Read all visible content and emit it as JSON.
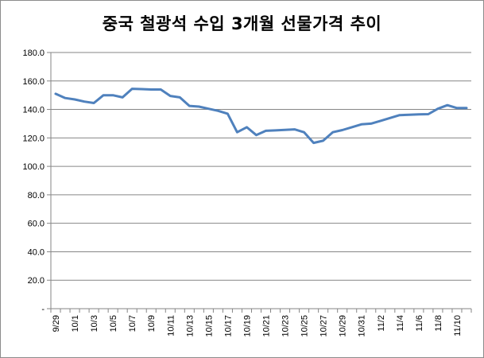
{
  "chart_data": {
    "type": "line",
    "title": "중국 철광석 수입 3개월 선물가격 추이",
    "xlabel": "",
    "ylabel": "",
    "ylim": [
      0,
      180
    ],
    "yticks": [
      {
        "value": 0,
        "label": "-"
      },
      {
        "value": 20,
        "label": "20.0"
      },
      {
        "value": 40,
        "label": "40.0"
      },
      {
        "value": 60,
        "label": "60.0"
      },
      {
        "value": 80,
        "label": "80.0"
      },
      {
        "value": 100,
        "label": "100.0"
      },
      {
        "value": 120,
        "label": "120.0"
      },
      {
        "value": 140,
        "label": "140.0"
      },
      {
        "value": 160,
        "label": "160.0"
      },
      {
        "value": 180,
        "label": "180.0"
      }
    ],
    "xticklabels": [
      "9/29",
      "10/1",
      "10/3",
      "10/5",
      "10/7",
      "10/9",
      "10/11",
      "10/13",
      "10/15",
      "10/17",
      "10/19",
      "10/21",
      "10/23",
      "10/25",
      "10/27",
      "10/29",
      "10/31",
      "11/2",
      "11/4",
      "11/6",
      "11/8",
      "11/10"
    ],
    "grid": {
      "y": true,
      "x": false
    },
    "legend": "none",
    "line_color": "#4f81bd",
    "x": [
      "9/29",
      "9/30",
      "10/1",
      "10/2",
      "10/3",
      "10/4",
      "10/5",
      "10/6",
      "10/7",
      "10/8",
      "10/9",
      "10/10",
      "10/11",
      "10/12",
      "10/13",
      "10/14",
      "10/15",
      "10/16",
      "10/17",
      "10/18",
      "10/19",
      "10/20",
      "10/21",
      "10/22",
      "10/23",
      "10/24",
      "10/25",
      "10/26",
      "10/27",
      "10/28",
      "10/29",
      "10/30",
      "10/31",
      "11/1",
      "11/2",
      "11/3",
      "11/4",
      "11/5",
      "11/6",
      "11/7",
      "11/8",
      "11/9",
      "11/10",
      "11/11"
    ],
    "values": [
      151.0,
      148.0,
      147.0,
      145.5,
      144.5,
      150.0,
      150.0,
      148.5,
      154.5,
      154.3,
      154.0,
      154.0,
      149.5,
      148.5,
      142.5,
      142.0,
      140.5,
      139.0,
      137.0,
      124.0,
      127.5,
      122.0,
      125.0,
      125.3,
      125.6,
      126.0,
      124.0,
      116.5,
      118.0,
      124.0,
      125.5,
      127.5,
      129.5,
      130.0,
      132.0,
      134.0,
      136.0,
      136.3,
      136.5,
      136.7,
      140.5,
      143.0,
      141.0,
      141.0
    ]
  }
}
